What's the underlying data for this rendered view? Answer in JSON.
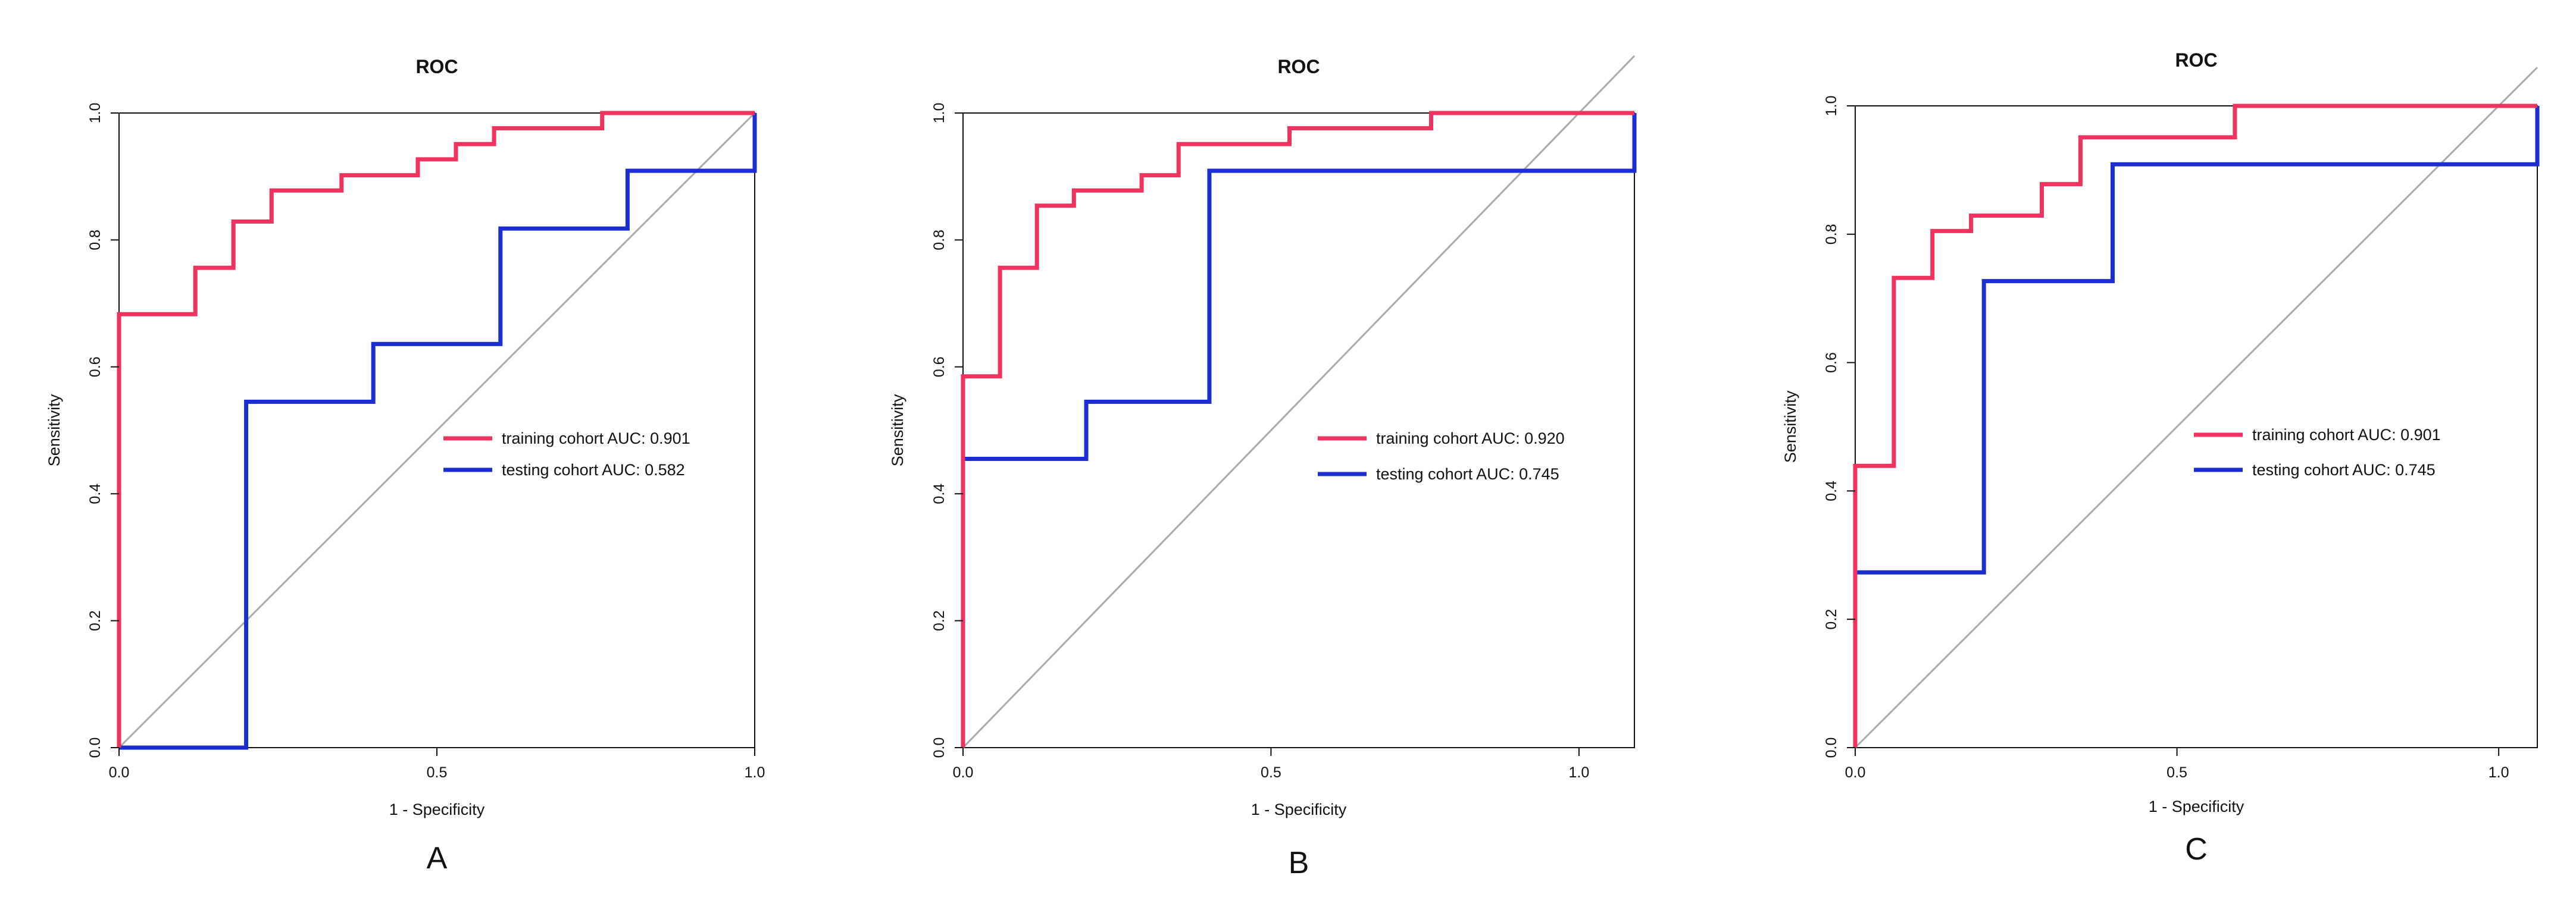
{
  "chart_data": [
    {
      "type": "line",
      "panel_label": "A",
      "title": "ROC",
      "xlabel": "1 - Specificity",
      "ylabel": "Sensitivity",
      "xlim": [
        0,
        1.0
      ],
      "ylim": [
        0,
        1.0
      ],
      "xticks": [
        0.0,
        0.5,
        1.0
      ],
      "xtick_labels": [
        "0.0",
        "0.5",
        "1.0"
      ],
      "yticks": [
        0.0,
        0.2,
        0.4,
        0.6,
        0.8,
        1.0
      ],
      "ytick_labels": [
        "0.0",
        "0.2",
        "0.4",
        "0.6",
        "0.8",
        "1.0"
      ],
      "grid": false,
      "legend_position": "right-center",
      "diagonal": {
        "x": [
          0,
          1
        ],
        "y": [
          0,
          1
        ],
        "color": "#aaaaaa"
      },
      "series": [
        {
          "name": "training cohort AUC: 0.901",
          "color": "#f0325f",
          "x": [
            0,
            0,
            0.12,
            0.12,
            0.18,
            0.18,
            0.24,
            0.24,
            0.35,
            0.35,
            0.47,
            0.47,
            0.53,
            0.53,
            0.59,
            0.59,
            0.76,
            0.76,
            1.0
          ],
          "y": [
            0,
            0.683,
            0.683,
            0.756,
            0.756,
            0.829,
            0.829,
            0.878,
            0.878,
            0.902,
            0.902,
            0.927,
            0.927,
            0.951,
            0.951,
            0.976,
            0.976,
            1.0,
            1.0
          ]
        },
        {
          "name": "testing cohort AUC: 0.582",
          "color": "#1a2ed2",
          "x": [
            0,
            0.2,
            0.2,
            0.4,
            0.4,
            0.6,
            0.6,
            0.8,
            0.8,
            1.0,
            1.0
          ],
          "y": [
            0,
            0,
            0.545,
            0.545,
            0.636,
            0.636,
            0.818,
            0.818,
            0.909,
            0.909,
            1.0
          ]
        }
      ]
    },
    {
      "type": "line",
      "panel_label": "B",
      "title": "ROC",
      "xlabel": "1 - Specificity",
      "ylabel": "Sensitivity",
      "xlim": [
        0,
        1.09
      ],
      "ylim": [
        0,
        1.0
      ],
      "xticks": [
        0.0,
        0.5,
        1.0
      ],
      "xtick_labels": [
        "0.0",
        "0.5",
        "1.0"
      ],
      "yticks": [
        0.0,
        0.2,
        0.4,
        0.6,
        0.8,
        1.0
      ],
      "ytick_labels": [
        "0.0",
        "0.2",
        "0.4",
        "0.6",
        "0.8",
        "1.0"
      ],
      "grid": false,
      "legend_position": "right-center",
      "diagonal": {
        "x": [
          0,
          1.09
        ],
        "y": [
          0,
          1.09
        ],
        "color": "#aaaaaa"
      },
      "series": [
        {
          "name": "training cohort AUC: 0.920",
          "color": "#f0325f",
          "x": [
            0,
            0,
            0.06,
            0.06,
            0.12,
            0.12,
            0.18,
            0.18,
            0.29,
            0.29,
            0.35,
            0.35,
            0.53,
            0.53,
            0.76,
            0.76,
            1.09
          ],
          "y": [
            0,
            0.585,
            0.585,
            0.756,
            0.756,
            0.854,
            0.854,
            0.878,
            0.878,
            0.902,
            0.902,
            0.951,
            0.951,
            0.976,
            0.976,
            1.0,
            1.0
          ]
        },
        {
          "name": "testing cohort AUC: 0.745",
          "color": "#1a2ed2",
          "x": [
            0,
            0,
            0.2,
            0.2,
            0.4,
            0.4,
            1.09,
            1.09
          ],
          "y": [
            0,
            0.455,
            0.455,
            0.545,
            0.545,
            0.909,
            0.909,
            1.0
          ]
        }
      ]
    },
    {
      "type": "line",
      "panel_label": "C",
      "title": "ROC",
      "xlabel": "1 - Specificity",
      "ylabel": "Sensitivity",
      "xlim": [
        0,
        1.06
      ],
      "ylim": [
        0,
        1.0
      ],
      "xticks": [
        0.0,
        0.5,
        1.0
      ],
      "xtick_labels": [
        "0.0",
        "0.5",
        "1.0"
      ],
      "yticks": [
        0.0,
        0.2,
        0.4,
        0.6,
        0.8,
        1.0
      ],
      "ytick_labels": [
        "0.0",
        "0.2",
        "0.4",
        "0.6",
        "0.8",
        "1.0"
      ],
      "grid": false,
      "legend_position": "right-center",
      "diagonal": {
        "x": [
          0,
          1.06
        ],
        "y": [
          0,
          1.06
        ],
        "color": "#aaaaaa"
      },
      "series": [
        {
          "name": "training cohort AUC: 0.901",
          "color": "#f0325f",
          "x": [
            0,
            0,
            0.06,
            0.06,
            0.12,
            0.12,
            0.18,
            0.18,
            0.29,
            0.29,
            0.35,
            0.35,
            0.59,
            0.59,
            1.06
          ],
          "y": [
            0,
            0.439,
            0.439,
            0.732,
            0.732,
            0.805,
            0.805,
            0.829,
            0.829,
            0.878,
            0.878,
            0.951,
            0.951,
            1.0,
            1.0
          ]
        },
        {
          "name": "testing cohort AUC: 0.745",
          "color": "#1a2ed2",
          "x": [
            0,
            0,
            0.2,
            0.2,
            0.4,
            0.4,
            1.06,
            1.06
          ],
          "y": [
            0,
            0.273,
            0.273,
            0.727,
            0.727,
            0.909,
            0.909,
            1.0
          ]
        }
      ]
    }
  ]
}
